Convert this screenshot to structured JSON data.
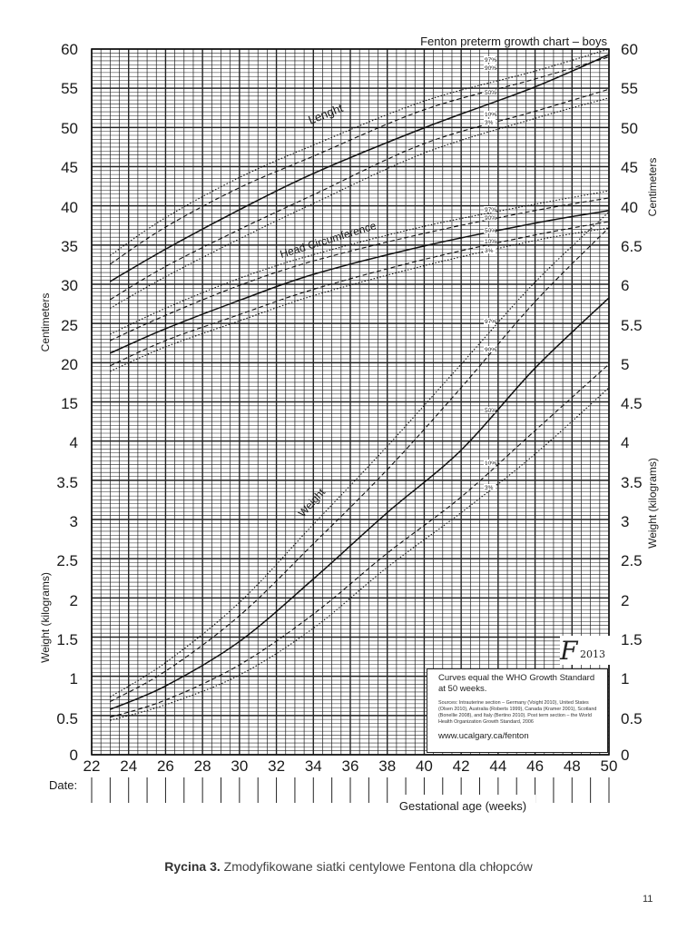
{
  "chart_data": {
    "type": "line",
    "title": "Fenton preterm growth chart – boys",
    "x": {
      "label": "Gestational age (weeks)",
      "range": [
        22,
        50
      ],
      "ticks": [
        "22",
        "24",
        "26",
        "28",
        "30",
        "32",
        "34",
        "36",
        "38",
        "40",
        "42",
        "44",
        "46",
        "48",
        "50"
      ]
    },
    "y_left": {
      "labels": [
        "Centimeters",
        "Weight (kilograms)"
      ],
      "ticks": [
        "0",
        "0.5",
        "1",
        "1.5",
        "2",
        "2.5",
        "3",
        "3.5",
        "4",
        "4.5",
        "5",
        "5.5",
        "6.5",
        "15",
        "20",
        "25",
        "30",
        "35",
        "40",
        "45",
        "50",
        "55",
        "60"
      ],
      "ticks_left_upper": [
        "60",
        "55",
        "50",
        "45",
        "40",
        "35",
        "30",
        "25",
        "20",
        "15"
      ],
      "ticks_left_lower": [
        "4",
        "3.5",
        "3",
        "2.5",
        "2",
        "1.5",
        "1",
        "0.5",
        "0"
      ]
    },
    "y_right": {
      "labels": [
        "Centimeters",
        "Weight (kilograms)"
      ],
      "ticks_right": [
        "60",
        "55",
        "50",
        "45",
        "40",
        "6.5",
        "6",
        "5.5",
        "5",
        "4.5",
        "4",
        "3.5",
        "3",
        "2.5",
        "2",
        "1.5",
        "1",
        "0.5",
        "0"
      ]
    },
    "date_label": "Date:",
    "curve_labels": {
      "length": "Lenght",
      "head": "Head Circumference",
      "weight": "Weight"
    },
    "percentile_labels": [
      "97%",
      "90%",
      "50%",
      "10%",
      "3%"
    ],
    "series": [
      {
        "name": "Length 97%",
        "x": [
          23,
          26,
          30,
          34,
          40,
          46,
          50
        ],
        "y": [
          33.8,
          38.6,
          43.7,
          47.8,
          53.4,
          57.2,
          60.0
        ]
      },
      {
        "name": "Length 90%",
        "x": [
          23,
          26,
          30,
          34,
          40,
          46,
          50
        ],
        "y": [
          32.7,
          37.4,
          42.4,
          46.4,
          52.3,
          56.2,
          59.0
        ]
      },
      {
        "name": "Length 50%",
        "x": [
          23,
          26,
          30,
          34,
          40,
          46,
          50
        ],
        "y": [
          30.5,
          34.6,
          39.6,
          44.2,
          50.0,
          55.2,
          59.3
        ]
      },
      {
        "name": "Length 10%",
        "x": [
          23,
          26,
          30,
          34,
          40,
          46,
          50
        ],
        "y": [
          28.2,
          32.4,
          37.1,
          41.5,
          48.0,
          52.1,
          54.9
        ]
      },
      {
        "name": "Length 3%",
        "x": [
          23,
          26,
          30,
          34,
          40,
          46,
          50
        ],
        "y": [
          27.1,
          31.1,
          35.9,
          40.4,
          46.8,
          51.2,
          53.8
        ]
      },
      {
        "name": "Head 97%",
        "x": [
          23,
          26,
          30,
          34,
          40,
          46,
          50
        ],
        "y": [
          23.8,
          27.1,
          30.9,
          33.9,
          37.5,
          40.3,
          42.0
        ]
      },
      {
        "name": "Head 90%",
        "x": [
          23,
          26,
          30,
          34,
          40,
          46,
          50
        ],
        "y": [
          23.0,
          26.2,
          30.0,
          33.1,
          36.6,
          39.5,
          41.1
        ]
      },
      {
        "name": "Head 50%",
        "x": [
          23,
          26,
          30,
          34,
          40,
          46,
          50
        ],
        "y": [
          21.4,
          24.5,
          28.1,
          31.4,
          35.0,
          37.9,
          39.5
        ]
      },
      {
        "name": "Head 10%",
        "x": [
          23,
          26,
          30,
          34,
          40,
          46,
          50
        ],
        "y": [
          19.8,
          23.0,
          26.3,
          29.5,
          33.3,
          36.4,
          38.1
        ]
      },
      {
        "name": "Head 3%",
        "x": [
          23,
          26,
          30,
          34,
          40,
          46,
          50
        ],
        "y": [
          19.1,
          22.2,
          25.5,
          28.7,
          32.5,
          35.7,
          37.3
        ]
      },
      {
        "name": "Weight 97%",
        "x": [
          23,
          26,
          30,
          34,
          38,
          42,
          46,
          50
        ],
        "y": [
          0.74,
          1.18,
          1.95,
          2.95,
          3.95,
          5.0,
          6.05,
          6.95
        ]
      },
      {
        "name": "Weight 90%",
        "x": [
          23,
          26,
          30,
          34,
          38,
          42,
          46,
          50
        ],
        "y": [
          0.68,
          1.07,
          1.78,
          2.7,
          3.65,
          4.7,
          5.8,
          6.75
        ]
      },
      {
        "name": "Weight 50%",
        "x": [
          23,
          26,
          30,
          34,
          38,
          42,
          46,
          50
        ],
        "y": [
          0.58,
          0.88,
          1.45,
          2.25,
          3.1,
          3.9,
          4.95,
          5.85
        ]
      },
      {
        "name": "Weight 10%",
        "x": [
          23,
          26,
          30,
          34,
          38,
          42,
          46,
          50
        ],
        "y": [
          0.48,
          0.7,
          1.15,
          1.8,
          2.58,
          3.3,
          4.15,
          5.0
        ]
      },
      {
        "name": "Weight 3%",
        "x": [
          23,
          26,
          30,
          34,
          38,
          42,
          46,
          50
        ],
        "y": [
          0.44,
          0.64,
          1.02,
          1.62,
          2.4,
          3.1,
          3.85,
          4.7
        ]
      }
    ]
  },
  "info_box": {
    "lead": "Curves equal the WHO Growth Standard at 50 weeks.",
    "sources": "Sources: Intrauterine section – Germany (Voight 2010), United States (Olsen 2010), Australia (Roberts 1999), Canada (Kramer 2001), Scotland (Bonellie 2008), and Italy (Bertino 2010). Post term section – the World Health Organization Growth Standard, 2006",
    "url": "www.ucalgary.ca/fenton"
  },
  "logo": {
    "letter": "F",
    "year": "2013"
  },
  "caption": {
    "bold": "Rycina 3.",
    "text": " Zmodyfikowane siatki centylowe Fentona dla chłopców"
  },
  "page_number": "11"
}
